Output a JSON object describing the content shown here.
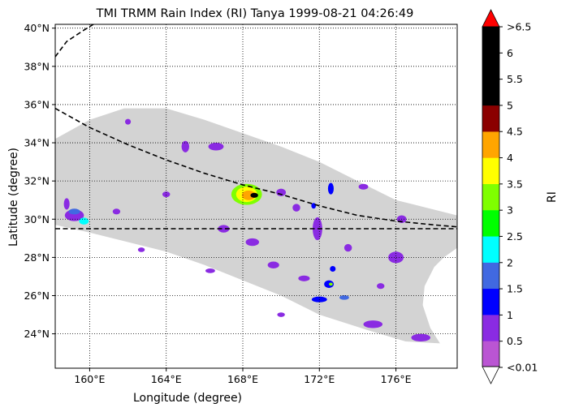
{
  "chart_data": {
    "type": "heatmap",
    "title": "TMI TRMM Rain Index (RI) Tanya 1999-08-21 04:26:49",
    "xlabel": "Longitude (degree)",
    "ylabel": "Latitude (degree)",
    "xlim": [
      158.2,
      179.2
    ],
    "ylim": [
      22.2,
      40.2
    ],
    "x_ticks": [
      160,
      164,
      168,
      172,
      176
    ],
    "x_tick_labels": [
      "160°E",
      "164°E",
      "168°E",
      "172°E",
      "176°E"
    ],
    "y_ticks": [
      24,
      26,
      28,
      30,
      32,
      34,
      36,
      38,
      40
    ],
    "y_tick_labels": [
      "24°N",
      "26°N",
      "28°N",
      "30°N",
      "32°N",
      "34°N",
      "36°N",
      "38°N",
      "40°N"
    ],
    "grid": true,
    "swath": {
      "color": "#d3d3d3",
      "outline_lonlat": [
        [
          158.2,
          34.2
        ],
        [
          160.0,
          35.2
        ],
        [
          161.8,
          35.8
        ],
        [
          164.0,
          35.8
        ],
        [
          166.0,
          35.2
        ],
        [
          168.0,
          34.5
        ],
        [
          170.0,
          33.8
        ],
        [
          172.0,
          33.0
        ],
        [
          174.0,
          32.0
        ],
        [
          176.0,
          31.0
        ],
        [
          178.0,
          30.5
        ],
        [
          179.2,
          30.2
        ],
        [
          179.2,
          28.5
        ],
        [
          178.5,
          28.0
        ],
        [
          178.0,
          27.5
        ],
        [
          177.5,
          26.5
        ],
        [
          177.4,
          25.5
        ],
        [
          177.8,
          24.3
        ],
        [
          178.3,
          23.5
        ],
        [
          176.5,
          23.6
        ],
        [
          174.5,
          24.2
        ],
        [
          172.0,
          25.0
        ],
        [
          170.0,
          26.0
        ],
        [
          168.0,
          26.8
        ],
        [
          166.0,
          27.6
        ],
        [
          164.0,
          28.3
        ],
        [
          162.0,
          28.8
        ],
        [
          160.0,
          29.3
        ],
        [
          158.2,
          29.7
        ]
      ]
    },
    "track_lines": [
      {
        "style": "dashed",
        "points": [
          [
            158.2,
            38.5
          ],
          [
            158.8,
            39.3
          ],
          [
            159.7,
            39.9
          ],
          [
            160.2,
            40.2
          ]
        ]
      },
      {
        "style": "dashed",
        "points": [
          [
            158.2,
            35.8
          ],
          [
            160.0,
            34.8
          ],
          [
            162.0,
            33.9
          ],
          [
            164.0,
            33.1
          ],
          [
            166.0,
            32.4
          ],
          [
            168.0,
            31.8
          ],
          [
            170.0,
            31.3
          ],
          [
            172.0,
            30.7
          ],
          [
            174.0,
            30.2
          ],
          [
            176.0,
            29.9
          ],
          [
            178.0,
            29.7
          ],
          [
            179.2,
            29.6
          ]
        ]
      },
      {
        "style": "dashed",
        "points": [
          [
            158.2,
            29.5
          ],
          [
            179.2,
            29.5
          ]
        ]
      }
    ],
    "rain_cells": [
      {
        "lon": 168.2,
        "lat": 31.3,
        "rx": 0.8,
        "ry": 0.55,
        "ri": 3.0
      },
      {
        "lon": 168.2,
        "lat": 31.3,
        "rx": 0.55,
        "ry": 0.4,
        "ri": 3.5
      },
      {
        "lon": 168.3,
        "lat": 31.25,
        "rx": 0.35,
        "ry": 0.25,
        "ri": 4.0
      },
      {
        "lon": 168.6,
        "lat": 31.25,
        "rx": 0.2,
        "ry": 0.13,
        "ri": 5.0
      },
      {
        "lon": 159.2,
        "lat": 30.2,
        "rx": 0.5,
        "ry": 0.3,
        "ri": 0.5
      },
      {
        "lon": 159.2,
        "lat": 30.4,
        "rx": 0.3,
        "ry": 0.15,
        "ri": 1.5
      },
      {
        "lon": 159.7,
        "lat": 29.9,
        "rx": 0.25,
        "ry": 0.18,
        "ri": 2.0
      },
      {
        "lon": 172.5,
        "lat": 26.6,
        "rx": 0.25,
        "ry": 0.2,
        "ri": 1.0
      },
      {
        "lon": 172.6,
        "lat": 26.6,
        "rx": 0.1,
        "ry": 0.08,
        "ri": 3.0
      },
      {
        "lon": 172.0,
        "lat": 25.8,
        "rx": 0.4,
        "ry": 0.15,
        "ri": 1.0
      },
      {
        "lon": 173.3,
        "lat": 25.9,
        "rx": 0.25,
        "ry": 0.12,
        "ri": 1.5
      },
      {
        "lon": 172.6,
        "lat": 31.6,
        "rx": 0.15,
        "ry": 0.3,
        "ri": 1.0
      },
      {
        "lon": 171.9,
        "lat": 29.5,
        "rx": 0.25,
        "ry": 0.6,
        "ri": 0.5
      },
      {
        "lon": 176.0,
        "lat": 28.0,
        "rx": 0.4,
        "ry": 0.3,
        "ri": 0.5
      },
      {
        "lon": 174.8,
        "lat": 24.5,
        "rx": 0.5,
        "ry": 0.2,
        "ri": 0.5
      },
      {
        "lon": 177.3,
        "lat": 23.8,
        "rx": 0.5,
        "ry": 0.2,
        "ri": 0.5
      },
      {
        "lon": 166.6,
        "lat": 33.8,
        "rx": 0.4,
        "ry": 0.2,
        "ri": 0.5
      },
      {
        "lon": 165.0,
        "lat": 33.8,
        "rx": 0.2,
        "ry": 0.3,
        "ri": 0.5
      },
      {
        "lon": 170.0,
        "lat": 31.4,
        "rx": 0.25,
        "ry": 0.2,
        "ri": 0.5
      },
      {
        "lon": 170.8,
        "lat": 30.6,
        "rx": 0.2,
        "ry": 0.2,
        "ri": 0.5
      },
      {
        "lon": 168.5,
        "lat": 28.8,
        "rx": 0.35,
        "ry": 0.2,
        "ri": 0.5
      },
      {
        "lon": 167.0,
        "lat": 29.5,
        "rx": 0.3,
        "ry": 0.2,
        "ri": 0.5
      },
      {
        "lon": 169.6,
        "lat": 27.6,
        "rx": 0.3,
        "ry": 0.18,
        "ri": 0.5
      },
      {
        "lon": 173.5,
        "lat": 28.5,
        "rx": 0.2,
        "ry": 0.2,
        "ri": 0.5
      },
      {
        "lon": 161.4,
        "lat": 30.4,
        "rx": 0.2,
        "ry": 0.15,
        "ri": 0.5
      },
      {
        "lon": 164.0,
        "lat": 31.3,
        "rx": 0.2,
        "ry": 0.15,
        "ri": 0.5
      },
      {
        "lon": 162.7,
        "lat": 28.4,
        "rx": 0.18,
        "ry": 0.12,
        "ri": 0.5
      },
      {
        "lon": 171.2,
        "lat": 26.9,
        "rx": 0.3,
        "ry": 0.15,
        "ri": 0.5
      },
      {
        "lon": 176.3,
        "lat": 30.0,
        "rx": 0.25,
        "ry": 0.2,
        "ri": 0.5
      },
      {
        "lon": 174.3,
        "lat": 31.7,
        "rx": 0.25,
        "ry": 0.15,
        "ri": 0.5
      },
      {
        "lon": 162.0,
        "lat": 35.1,
        "rx": 0.15,
        "ry": 0.15,
        "ri": 0.5
      },
      {
        "lon": 158.8,
        "lat": 30.8,
        "rx": 0.15,
        "ry": 0.3,
        "ri": 0.5
      },
      {
        "lon": 170.0,
        "lat": 25.0,
        "rx": 0.2,
        "ry": 0.12,
        "ri": 0.5
      },
      {
        "lon": 166.3,
        "lat": 27.3,
        "rx": 0.25,
        "ry": 0.12,
        "ri": 0.5
      },
      {
        "lon": 175.2,
        "lat": 26.5,
        "rx": 0.2,
        "ry": 0.15,
        "ri": 0.5
      },
      {
        "lon": 172.7,
        "lat": 27.4,
        "rx": 0.15,
        "ry": 0.15,
        "ri": 1.0
      },
      {
        "lon": 171.7,
        "lat": 30.7,
        "rx": 0.12,
        "ry": 0.15,
        "ri": 1.0
      }
    ],
    "colorbar": {
      "label": "RI",
      "tick_labels": [
        ">6.5",
        "6",
        "5.5",
        "5",
        "4.5",
        "4",
        "3.5",
        "3",
        "2.5",
        "2",
        "1.5",
        "1",
        "0.5",
        "<0.01"
      ],
      "under_color": "#ffffff",
      "over_color": "#ff0000",
      "levels": [
        {
          "from": 0.01,
          "to": 0.5,
          "color": "#ba55d3"
        },
        {
          "from": 0.5,
          "to": 1.0,
          "color": "#8a2be2"
        },
        {
          "from": 1.0,
          "to": 1.5,
          "color": "#0000ff"
        },
        {
          "from": 1.5,
          "to": 2.0,
          "color": "#4169e1"
        },
        {
          "from": 2.0,
          "to": 2.5,
          "color": "#00ffff"
        },
        {
          "from": 2.5,
          "to": 3.0,
          "color": "#00ff00"
        },
        {
          "from": 3.0,
          "to": 3.5,
          "color": "#7fff00"
        },
        {
          "from": 3.5,
          "to": 4.0,
          "color": "#ffff00"
        },
        {
          "from": 4.0,
          "to": 4.5,
          "color": "#ffa500"
        },
        {
          "from": 4.5,
          "to": 5.0,
          "color": "#8b0000"
        },
        {
          "from": 5.0,
          "to": 6.5,
          "color": "#000000"
        }
      ]
    }
  }
}
